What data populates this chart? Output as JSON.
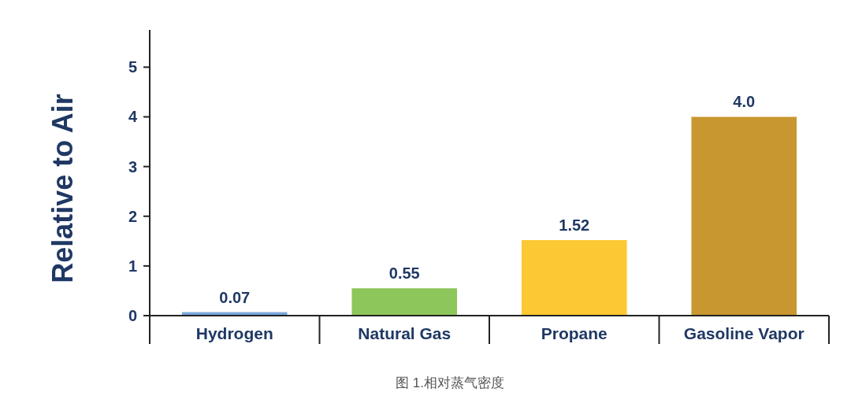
{
  "chart_data": {
    "type": "bar",
    "ylabel": "Relative to Air",
    "categories": [
      "Hydrogen",
      "Natural Gas",
      "Propane",
      "Gasoline Vapor"
    ],
    "values": [
      0.07,
      0.55,
      1.52,
      4.0
    ],
    "value_labels": [
      "0.07",
      "0.55",
      "1.52",
      "4.0"
    ],
    "colors": [
      "#7aa7dc",
      "#8dc65a",
      "#fcc833",
      "#c9972f"
    ],
    "ylim": [
      0,
      5.75
    ],
    "yticks": [
      0,
      1,
      2,
      3,
      4,
      5
    ],
    "grid": false,
    "annotations": [
      "图 1.相对蒸气密度"
    ]
  }
}
